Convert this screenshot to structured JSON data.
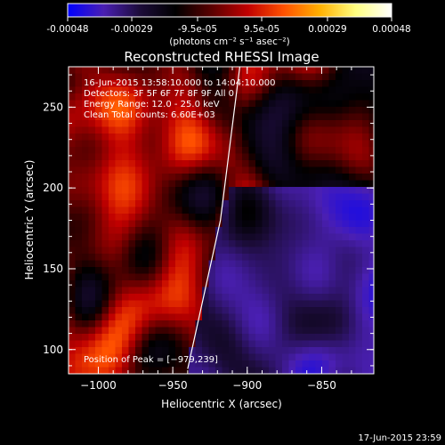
{
  "colorbar": {
    "tick_labels": [
      "-0.00048",
      "-0.00029",
      "-9.5e-05",
      "9.5e-05",
      "0.00029",
      "0.00048"
    ],
    "tick_values": [
      -0.00048,
      -0.00029,
      -9.5e-05,
      9.5e-05,
      0.00029,
      0.00048
    ],
    "range": [
      -0.00048,
      0.00048
    ],
    "units_label": "(photons cm⁻² s⁻¹ asec⁻²)",
    "colors": [
      "#0000ff",
      "#4a1fb3",
      "#1c0c3a",
      "#000000",
      "#5a0000",
      "#c00000",
      "#ff5000",
      "#ffb000",
      "#ffff80",
      "#ffffff"
    ]
  },
  "chart_data": {
    "type": "heatmap",
    "title": "Reconstructed RHESSI Image",
    "xlabel": "Heliocentric X (arcsec)",
    "ylabel": "Heliocentric Y (arcsec)",
    "xlim": [
      -1020,
      -815
    ],
    "ylim": [
      85,
      275
    ],
    "x_ticks": [
      -1000,
      -950,
      -900,
      -850
    ],
    "y_ticks": [
      100,
      150,
      200,
      250
    ],
    "x_tick_labels": [
      "−1000",
      "−950",
      "−900",
      "−850"
    ],
    "y_tick_labels": [
      "100",
      "150",
      "200",
      "250"
    ],
    "annotations": [
      "16-Jun-2015 13:58:10.000 to 14:04:10.000",
      "Detectors: 3F 5F 6F 7F 8F 9F All 0",
      "Energy Range: 12.0 - 25.0 keV",
      "Clean    Total counts: 6.60E+03"
    ],
    "peak_label": "Position of Peak = [−979,239]",
    "peak_position": [
      -979,
      239
    ],
    "limb_line": [
      [
        -940,
        88
      ],
      [
        -918,
        180
      ],
      [
        -905,
        275
      ]
    ],
    "grid": false
  },
  "footer": {
    "timestamp": "17-Jun-2015 23:59"
  }
}
